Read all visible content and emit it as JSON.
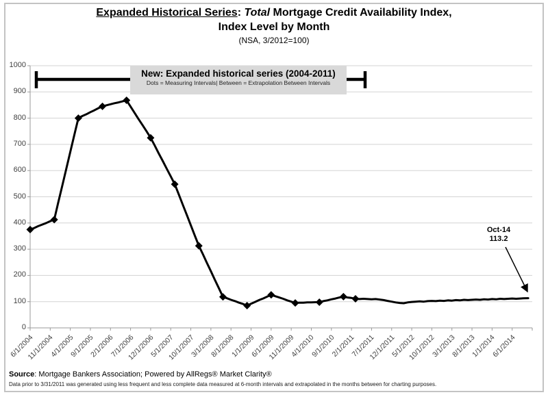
{
  "title": {
    "part_underlined": "Expanded Historical Series",
    "part_sep": ": ",
    "part_italic": "Total",
    "part_rest": " Mortgage Credit Availability Index,",
    "line2": "Index Level by Month",
    "subtitle": "(NSA, 3/2012=100)"
  },
  "callout": {
    "title": "New: Expanded historical series (2004-2011)",
    "subtitle": "Dots = Measuring Intervals| Between = Extrapolation Between Intervals"
  },
  "annotation": {
    "line1": "Oct-14",
    "line2": "113.2"
  },
  "footer": {
    "source_bold": "Source",
    "source_rest": ": Mortgage Bankers Association; Powered by AllRegs® Market Clarity®",
    "note": "Data prior to 3/31/2011 was generated using less frequent and less complete data measured at 6-month intervals and extrapolated in the months between for charting purposes."
  },
  "chart_data": {
    "type": "line",
    "title": "Total Mortgage Credit Availability Index, Index Level by Month (NSA, 3/2012=100)",
    "xlabel": "",
    "ylabel": "",
    "x_start": "6/2004",
    "x_end": "10/2014",
    "frequency": "monthly",
    "ylim": [
      0,
      1000
    ],
    "grid": "horizontal",
    "legend": "none",
    "y_ticks": [
      0,
      100,
      200,
      300,
      400,
      500,
      600,
      700,
      800,
      900,
      1000
    ],
    "x_tick_labels": [
      "6/1/2004",
      "11/1/2004",
      "4/1/2005",
      "9/1/2005",
      "2/1/2006",
      "7/1/2006",
      "12/1/2006",
      "5/1/2007",
      "10/1/2007",
      "3/1/2008",
      "8/1/2008",
      "1/1/2009",
      "6/1/2009",
      "11/1/2009",
      "4/1/2010",
      "9/1/2010",
      "2/1/2011",
      "7/1/2011",
      "12/1/2011",
      "5/1/2012",
      "10/1/2012",
      "3/1/2013",
      "8/1/2013",
      "1/1/2014",
      "6/1/2014"
    ],
    "x_tick_interval_months": 5,
    "values": [
      375,
      381,
      388,
      394,
      400,
      407,
      413,
      478,
      542,
      607,
      671,
      736,
      800,
      808,
      815,
      823,
      830,
      838,
      845,
      849,
      853,
      857,
      860,
      864,
      868,
      844,
      820,
      796,
      773,
      749,
      725,
      696,
      666,
      637,
      607,
      578,
      548,
      509,
      470,
      431,
      391,
      352,
      313,
      281,
      248,
      216,
      183,
      151,
      118,
      113,
      107,
      102,
      96,
      91,
      85,
      92,
      99,
      106,
      112,
      119,
      126,
      121,
      116,
      111,
      105,
      100,
      95,
      96,
      96,
      97,
      97,
      98,
      98,
      102,
      105,
      109,
      112,
      116,
      119,
      116,
      114,
      111,
      110,
      111,
      110,
      109,
      110,
      108,
      106,
      103,
      100,
      97,
      95,
      94,
      97,
      99,
      100,
      101,
      100,
      102,
      103,
      102,
      104,
      103,
      105,
      104,
      106,
      105,
      107,
      106,
      107,
      108,
      107,
      109,
      108,
      110,
      109,
      111,
      110,
      111,
      112,
      111,
      112,
      113,
      113.2
    ],
    "marker_indices": [
      0,
      6,
      12,
      18,
      24,
      30,
      36,
      42,
      48,
      54,
      60,
      66,
      72,
      78,
      81
    ],
    "marker_meaning": "Dots = Measuring Intervals",
    "last_point": {
      "label": "Oct-14",
      "value": 113.2
    },
    "line_color": "#000000",
    "marker_color": "#000000",
    "gridline_color": "#d3d3d3",
    "axis_color": "#9a9a9a",
    "callout_bg": "#d9d9d9"
  }
}
